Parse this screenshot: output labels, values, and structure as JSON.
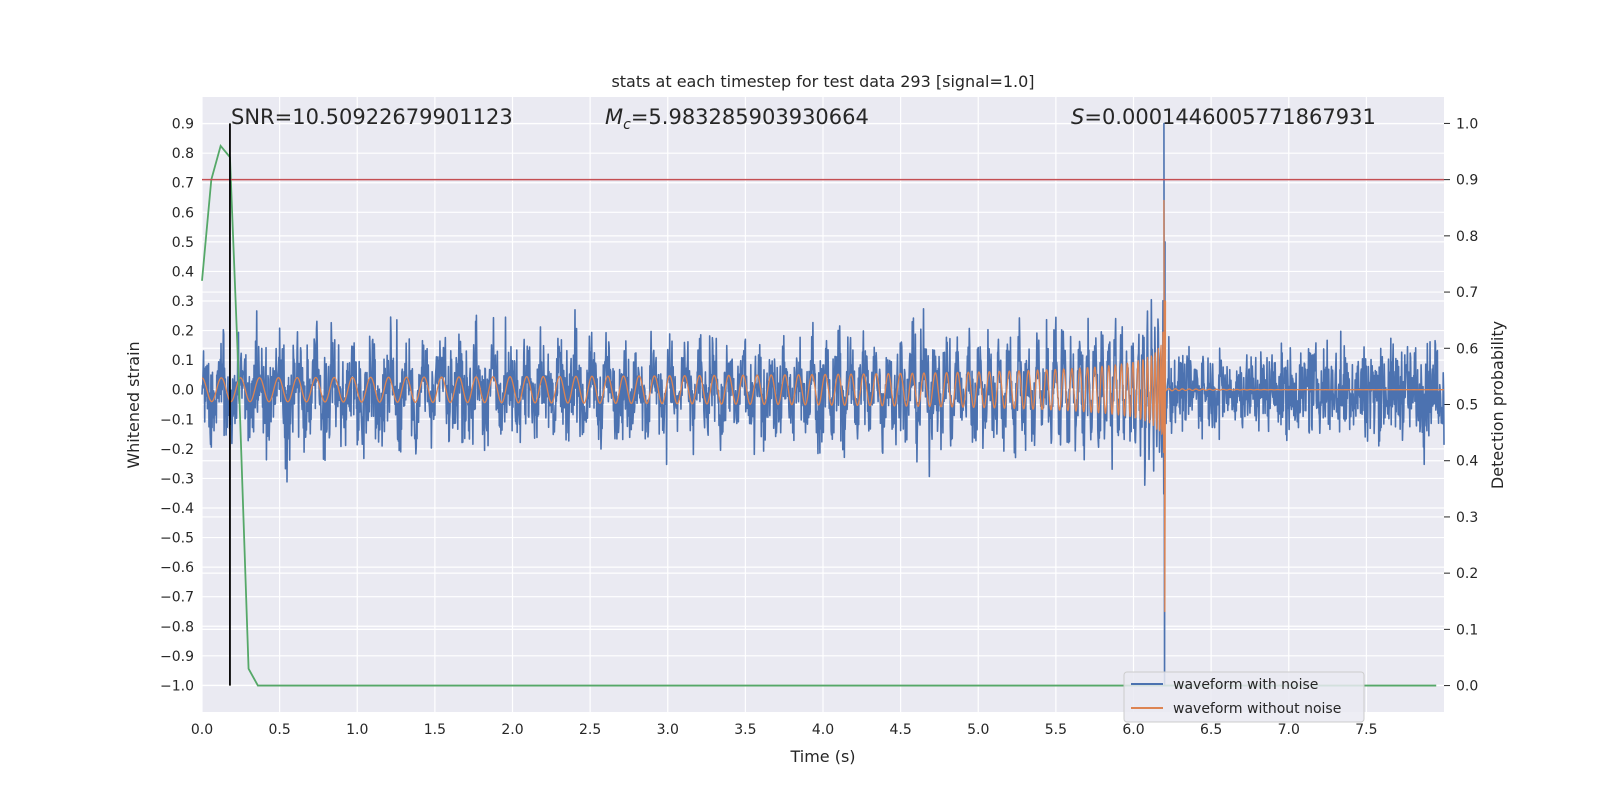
{
  "chart_data": {
    "type": "line",
    "title": "stats at each timestep for test data 293 [signal=1.0]",
    "xlabel": "Time (s)",
    "ylabel": "Whitened strain",
    "y2label": "Detection probability",
    "xlim": [
      0.0,
      8.0
    ],
    "ylim": [
      -1.09,
      0.99
    ],
    "y2lim": [
      -0.047,
      1.047
    ],
    "grid": true,
    "x_ticks": [
      "0.0",
      "0.5",
      "1.0",
      "1.5",
      "2.0",
      "2.5",
      "3.0",
      "3.5",
      "4.0",
      "4.5",
      "5.0",
      "5.5",
      "6.0",
      "6.5",
      "7.0",
      "7.5"
    ],
    "y_ticks": [
      "0.9",
      "0.8",
      "0.7",
      "0.6",
      "0.5",
      "0.4",
      "0.3",
      "0.2",
      "0.1",
      "0.0",
      "−0.1",
      "−0.2",
      "−0.3",
      "−0.4",
      "−0.5",
      "−0.6",
      "−0.7",
      "−0.8",
      "−0.9",
      "−1.0"
    ],
    "y2_ticks": [
      "1.0",
      "0.9",
      "0.8",
      "0.7",
      "0.6",
      "0.5",
      "0.4",
      "0.3",
      "0.2",
      "0.1",
      "0.0"
    ],
    "annotations": {
      "snr": "SNR=10.50922679901123",
      "mc_symbol": "M",
      "mc_sub": "c",
      "mc_value": "=5.983285903930664",
      "s_symbol": "S",
      "s_value": "=0.0001446005771867931"
    },
    "threshold_probability": 0.9,
    "marker_time": 0.18,
    "merger_time": 6.2,
    "series": [
      {
        "name": "waveform with noise",
        "color": "#4c72b0",
        "noise_amplitude": 0.3,
        "peak": 0.9,
        "trough": -1.0
      },
      {
        "name": "waveform without noise",
        "color": "#dd8452",
        "initial_amplitude": 0.04,
        "peak": 0.64,
        "trough": -0.75
      },
      {
        "name": "",
        "axis": "right",
        "color": "#55a868",
        "x": [
          0.0,
          0.06,
          0.12,
          0.18,
          0.24,
          0.3,
          0.36,
          0.45,
          7.95
        ],
        "y": [
          0.72,
          0.9,
          0.96,
          0.94,
          0.52,
          0.03,
          0.0,
          0.0,
          0.0
        ]
      }
    ],
    "threshold_color": "#c44e52",
    "marker_color": "#000000"
  },
  "legend": {
    "items": [
      {
        "label": "waveform with noise",
        "color": "#4c72b0"
      },
      {
        "label": "waveform without noise",
        "color": "#dd8452"
      }
    ]
  }
}
